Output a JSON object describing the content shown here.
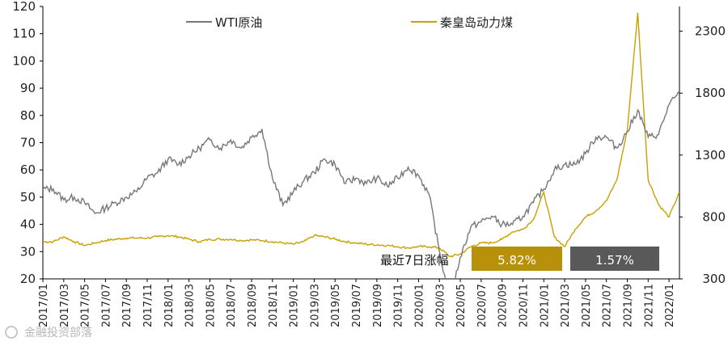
{
  "chart_data": {
    "type": "line",
    "legend": {
      "placement": "top",
      "entries": [
        "WTI原油",
        "秦皇岛动力煤"
      ]
    },
    "colors": {
      "wti": "#777777",
      "coal": "#c8a000",
      "axis": "#000000",
      "box_coal": "#b8900a",
      "box_wti": "#595959"
    },
    "y_left": {
      "min": 20,
      "max": 120,
      "ticks": [
        20,
        30,
        40,
        50,
        60,
        70,
        80,
        90,
        100,
        110,
        120
      ]
    },
    "y_right": {
      "min": 300,
      "max": 2500,
      "ticks": [
        300,
        800,
        1300,
        1800,
        2300
      ]
    },
    "grid": false,
    "x_ticks": [
      "2017/01",
      "2017/03",
      "2017/05",
      "2017/07",
      "2017/09",
      "2017/11",
      "2018/01",
      "2018/03",
      "2018/05",
      "2018/07",
      "2018/09",
      "2018/11",
      "2019/01",
      "2019/03",
      "2019/05",
      "2019/07",
      "2019/09",
      "2019/11",
      "2020/01",
      "2020/03",
      "2020/05",
      "2020/07",
      "2020/09",
      "2020/11",
      "2021/01",
      "2021/03",
      "2021/05",
      "2021/07",
      "2021/09",
      "2021/11",
      "2022/01"
    ],
    "series": [
      {
        "name": "WTI原油",
        "axis": "left",
        "x": [
          "2017/01",
          "2017/02",
          "2017/03",
          "2017/04",
          "2017/05",
          "2017/06",
          "2017/07",
          "2017/08",
          "2017/09",
          "2017/10",
          "2017/11",
          "2017/12",
          "2018/01",
          "2018/02",
          "2018/03",
          "2018/04",
          "2018/05",
          "2018/06",
          "2018/07",
          "2018/08",
          "2018/09",
          "2018/10",
          "2018/11",
          "2018/12",
          "2019/01",
          "2019/02",
          "2019/03",
          "2019/04",
          "2019/05",
          "2019/06",
          "2019/07",
          "2019/08",
          "2019/09",
          "2019/10",
          "2019/11",
          "2019/12",
          "2020/01",
          "2020/02",
          "2020/03",
          "2020/04",
          "2020/05",
          "2020/06",
          "2020/07",
          "2020/08",
          "2020/09",
          "2020/10",
          "2020/11",
          "2020/12",
          "2021/01",
          "2021/02",
          "2021/03",
          "2021/04",
          "2021/05",
          "2021/06",
          "2021/07",
          "2021/08",
          "2021/09",
          "2021/10",
          "2021/11",
          "2021/12",
          "2022/01",
          "2022/02"
        ],
        "values": [
          53,
          53,
          49,
          50,
          48,
          44,
          46,
          48,
          50,
          52,
          57,
          59,
          64,
          62,
          65,
          68,
          71,
          68,
          71,
          68,
          72,
          75,
          57,
          47,
          52,
          56,
          59,
          64,
          62,
          55,
          57,
          55,
          57,
          54,
          57,
          61,
          58,
          51,
          30,
          12,
          28,
          39,
          41,
          43,
          40,
          40,
          43,
          48,
          53,
          60,
          62,
          62,
          66,
          72,
          72,
          68,
          74,
          82,
          72,
          73,
          84,
          88
        ]
      },
      {
        "name": "秦皇岛动力煤",
        "axis": "right",
        "x": [
          "2017/01",
          "2017/02",
          "2017/03",
          "2017/04",
          "2017/05",
          "2017/06",
          "2017/07",
          "2017/08",
          "2017/09",
          "2017/10",
          "2017/11",
          "2017/12",
          "2018/01",
          "2018/02",
          "2018/03",
          "2018/04",
          "2018/05",
          "2018/06",
          "2018/07",
          "2018/08",
          "2018/09",
          "2018/10",
          "2018/11",
          "2018/12",
          "2019/01",
          "2019/02",
          "2019/03",
          "2019/04",
          "2019/05",
          "2019/06",
          "2019/07",
          "2019/08",
          "2019/09",
          "2019/10",
          "2019/11",
          "2019/12",
          "2020/01",
          "2020/02",
          "2020/03",
          "2020/04",
          "2020/05",
          "2020/06",
          "2020/07",
          "2020/08",
          "2020/09",
          "2020/10",
          "2020/11",
          "2020/12",
          "2021/01",
          "2021/02",
          "2021/03",
          "2021/04",
          "2021/05",
          "2021/06",
          "2021/07",
          "2021/08",
          "2021/09",
          "2021/10",
          "2021/11",
          "2021/12",
          "2022/01",
          "2022/02"
        ],
        "values": [
          600,
          600,
          640,
          600,
          570,
          590,
          610,
          620,
          630,
          630,
          630,
          640,
          650,
          640,
          620,
          600,
          620,
          620,
          620,
          610,
          615,
          610,
          600,
          590,
          580,
          600,
          650,
          640,
          620,
          600,
          590,
          580,
          575,
          570,
          560,
          550,
          560,
          560,
          550,
          480,
          500,
          560,
          590,
          590,
          620,
          680,
          700,
          780,
          1000,
          640,
          560,
          700,
          800,
          850,
          930,
          1100,
          1500,
          2450,
          1100,
          900,
          800,
          1000
        ]
      }
    ],
    "annotation": {
      "label": "最近7日涨幅",
      "coal_change": "5.82%",
      "wti_change": "1.57%"
    },
    "watermark": "金融投资部落"
  }
}
